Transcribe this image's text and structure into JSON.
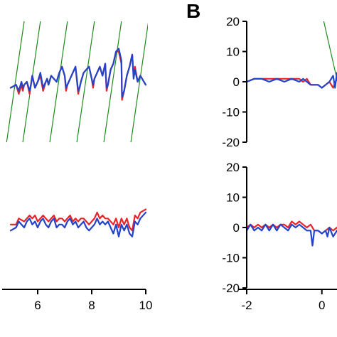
{
  "panel_labels": {
    "b": "B"
  },
  "colors": {
    "red": "#e8232a",
    "blue": "#2344c9",
    "green": "#1f8a1f",
    "axis": "#000000"
  },
  "chart_data": [
    {
      "type": "line",
      "panel": "A-top",
      "xlim": [
        5,
        10
      ],
      "ylim": [
        -20,
        20
      ],
      "series": [
        {
          "color": "red",
          "x": [
            5.0,
            5.2,
            5.3,
            5.4,
            5.45,
            5.5,
            5.6,
            5.7,
            5.75,
            5.8,
            5.9,
            6.0,
            6.1,
            6.2,
            6.3,
            6.35,
            6.4,
            6.5,
            6.6,
            6.7,
            6.8,
            6.9,
            7.0,
            7.05,
            7.1,
            7.2,
            7.3,
            7.4,
            7.5,
            7.55,
            7.6,
            7.7,
            7.8,
            7.9,
            8.0,
            8.05,
            8.1,
            8.2,
            8.3,
            8.4,
            8.5,
            8.55,
            8.6,
            8.7,
            8.8,
            8.9,
            9.0,
            9.1,
            9.12,
            9.2,
            9.3,
            9.4,
            9.5,
            9.55,
            9.6,
            9.7,
            9.8,
            10.0
          ],
          "y": [
            -2,
            -1,
            -4,
            -1,
            -3,
            -1,
            0,
            -4,
            -1,
            2,
            -2,
            0,
            2,
            -3,
            0,
            1,
            -1,
            2,
            1,
            0,
            3,
            5,
            2,
            -3,
            -1,
            1,
            3,
            5,
            -4,
            -2,
            0,
            3,
            4,
            5,
            1,
            -2,
            1,
            3,
            5,
            2,
            6,
            -3,
            -1,
            4,
            6,
            10,
            10,
            6,
            -6,
            -3,
            2,
            5,
            9,
            2,
            5,
            0,
            2,
            -1
          ]
        },
        {
          "color": "blue",
          "x": [
            5.0,
            5.2,
            5.3,
            5.4,
            5.45,
            5.5,
            5.6,
            5.7,
            5.75,
            5.8,
            5.9,
            6.0,
            6.1,
            6.2,
            6.3,
            6.35,
            6.4,
            6.5,
            6.6,
            6.7,
            6.8,
            6.9,
            7.0,
            7.05,
            7.1,
            7.2,
            7.3,
            7.4,
            7.5,
            7.55,
            7.6,
            7.7,
            7.8,
            7.9,
            8.0,
            8.05,
            8.1,
            8.2,
            8.3,
            8.4,
            8.5,
            8.55,
            8.6,
            8.7,
            8.8,
            8.9,
            9.0,
            9.1,
            9.12,
            9.2,
            9.3,
            9.4,
            9.5,
            9.55,
            9.6,
            9.7,
            9.8,
            10.0
          ],
          "y": [
            -2,
            -1,
            -3,
            0,
            -2,
            -1,
            0,
            -3,
            -1,
            2,
            -2,
            0,
            3,
            -2,
            0,
            1,
            -1,
            2,
            1,
            0,
            3,
            5,
            2,
            -2,
            -1,
            1,
            3,
            5,
            -3,
            -2,
            0,
            3,
            4,
            5,
            1,
            -1,
            1,
            3,
            5,
            2,
            6,
            -2,
            -1,
            4,
            6,
            10,
            11,
            7,
            -5,
            -3,
            2,
            5,
            9,
            1,
            4,
            0,
            2,
            -1
          ]
        },
        {
          "color": "green",
          "x": [
            4.85,
            5.5
          ],
          "y": [
            -20,
            20
          ]
        },
        {
          "color": "green",
          "x": [
            5.45,
            6.1
          ],
          "y": [
            -20,
            20
          ]
        },
        {
          "color": "green",
          "x": [
            6.45,
            7.1
          ],
          "y": [
            -20,
            20
          ]
        },
        {
          "color": "green",
          "x": [
            7.45,
            8.1
          ],
          "y": [
            -20,
            20
          ]
        },
        {
          "color": "green",
          "x": [
            8.45,
            9.1
          ],
          "y": [
            -20,
            20
          ]
        },
        {
          "color": "green",
          "x": [
            9.45,
            10.1
          ],
          "y": [
            -20,
            20
          ]
        }
      ]
    },
    {
      "type": "line",
      "panel": "A-bottom",
      "xlim": [
        5,
        10
      ],
      "ylim": [
        -20,
        20
      ],
      "x_ticks": [
        6,
        8,
        10
      ],
      "x_tick_labels": [
        "6",
        "8",
        "10"
      ],
      "series": [
        {
          "color": "red",
          "x": [
            5.0,
            5.2,
            5.3,
            5.5,
            5.6,
            5.7,
            5.8,
            5.9,
            6.0,
            6.1,
            6.2,
            6.3,
            6.4,
            6.5,
            6.6,
            6.7,
            6.8,
            6.9,
            7.0,
            7.1,
            7.2,
            7.3,
            7.4,
            7.5,
            7.6,
            7.7,
            7.8,
            7.9,
            8.0,
            8.1,
            8.2,
            8.3,
            8.4,
            8.5,
            8.6,
            8.7,
            8.8,
            8.9,
            9.0,
            9.1,
            9.2,
            9.3,
            9.4,
            9.5,
            9.6,
            9.7,
            9.8,
            10.0
          ],
          "y": [
            1,
            1,
            3,
            2,
            3,
            4,
            3,
            4,
            2,
            3,
            4,
            3,
            2,
            3,
            4,
            2,
            3,
            3,
            2,
            3,
            4,
            2,
            3,
            2,
            3,
            3,
            2,
            1,
            2,
            3,
            5,
            3,
            4,
            3,
            3,
            2,
            1,
            3,
            0,
            3,
            1,
            3,
            0,
            -1,
            4,
            3,
            5,
            6
          ]
        },
        {
          "color": "blue",
          "x": [
            5.0,
            5.2,
            5.3,
            5.5,
            5.6,
            5.7,
            5.8,
            5.9,
            6.0,
            6.1,
            6.2,
            6.3,
            6.4,
            6.5,
            6.6,
            6.7,
            6.8,
            6.9,
            7.0,
            7.1,
            7.2,
            7.3,
            7.4,
            7.5,
            7.6,
            7.7,
            7.8,
            7.9,
            8.0,
            8.1,
            8.2,
            8.3,
            8.4,
            8.5,
            8.6,
            8.7,
            8.8,
            8.9,
            9.0,
            9.1,
            9.2,
            9.3,
            9.4,
            9.5,
            9.6,
            9.7,
            9.8,
            10.0
          ],
          "y": [
            -1,
            0,
            2,
            0,
            2,
            3,
            1,
            2,
            0,
            2,
            3,
            1,
            0,
            2,
            3,
            0,
            1,
            1,
            0,
            2,
            3,
            1,
            2,
            0,
            1,
            2,
            0,
            -1,
            0,
            1,
            3,
            1,
            2,
            1,
            2,
            0,
            -2,
            1,
            -3,
            1,
            -1,
            1,
            -2,
            -3,
            2,
            1,
            3,
            5
          ]
        }
      ]
    },
    {
      "type": "line",
      "panel": "B-top",
      "xlim": [
        -2,
        1.5
      ],
      "ylim": [
        -20,
        20
      ],
      "y_ticks": [
        20,
        10,
        0,
        -10,
        -20
      ],
      "y_tick_labels": [
        "20",
        "10",
        "0",
        "-10",
        "-20"
      ],
      "series": [
        {
          "color": "red",
          "x": [
            -2.0,
            -1.8,
            -1.6,
            -1.4,
            -1.2,
            -1.0,
            -0.8,
            -0.6,
            -0.5,
            -0.4,
            -0.3,
            -0.2,
            -0.1,
            0.0,
            0.1,
            0.2,
            0.3,
            0.4,
            0.5
          ],
          "y": [
            0,
            1,
            1,
            1,
            1,
            1,
            1,
            1,
            0,
            1,
            -1,
            -1,
            -1,
            -2,
            -1,
            0,
            -2,
            1,
            -2
          ]
        },
        {
          "color": "blue",
          "x": [
            -2.0,
            -1.8,
            -1.6,
            -1.4,
            -1.2,
            -1.0,
            -0.8,
            -0.6,
            -0.5,
            -0.4,
            -0.3,
            -0.2,
            -0.1,
            0.0,
            0.1,
            0.2,
            0.3,
            0.35,
            0.4,
            0.45,
            0.5
          ],
          "y": [
            0,
            1,
            1,
            0,
            1,
            0,
            1,
            0,
            1,
            0,
            -1,
            -1,
            -1,
            -2,
            -1,
            0,
            2,
            -2,
            3,
            -3,
            -2
          ]
        },
        {
          "color": "green",
          "x": [
            0.05,
            0.6
          ],
          "y": [
            20,
            -10
          ]
        }
      ]
    },
    {
      "type": "line",
      "panel": "B-bottom",
      "xlim": [
        -2,
        1.5
      ],
      "ylim": [
        -20,
        20
      ],
      "y_ticks": [
        20,
        10,
        0,
        -10,
        -20
      ],
      "y_tick_labels": [
        "20",
        "10",
        "0",
        "-10",
        "-20"
      ],
      "x_ticks": [
        -2,
        0
      ],
      "x_tick_labels": [
        "-2",
        "0"
      ],
      "series": [
        {
          "color": "red",
          "x": [
            -2.0,
            -1.9,
            -1.8,
            -1.7,
            -1.6,
            -1.5,
            -1.4,
            -1.3,
            -1.2,
            -1.1,
            -1.0,
            -0.9,
            -0.8,
            -0.7,
            -0.6,
            -0.5,
            -0.4,
            -0.3,
            -0.2,
            -0.1,
            0.0,
            0.1,
            0.2,
            0.3,
            0.4,
            0.5
          ],
          "y": [
            0,
            1,
            0,
            1,
            0,
            1,
            0,
            1,
            0,
            1,
            1,
            0,
            2,
            1,
            2,
            1,
            0,
            1,
            -1,
            -1,
            -2,
            -1,
            0,
            -1,
            0,
            -1
          ]
        },
        {
          "color": "blue",
          "x": [
            -2.0,
            -1.9,
            -1.8,
            -1.7,
            -1.6,
            -1.5,
            -1.4,
            -1.3,
            -1.2,
            -1.1,
            -1.0,
            -0.9,
            -0.8,
            -0.7,
            -0.6,
            -0.5,
            -0.4,
            -0.3,
            -0.25,
            -0.2,
            -0.1,
            0.0,
            0.1,
            0.15,
            0.2,
            0.3,
            0.4,
            0.5
          ],
          "y": [
            -1,
            1,
            -1,
            0,
            -1,
            1,
            -1,
            1,
            -1,
            1,
            0,
            -1,
            1,
            0,
            1,
            0,
            -1,
            -1,
            -6,
            -1,
            -1,
            -2,
            -1,
            -3,
            0,
            -3,
            -1,
            -2
          ]
        }
      ]
    }
  ]
}
